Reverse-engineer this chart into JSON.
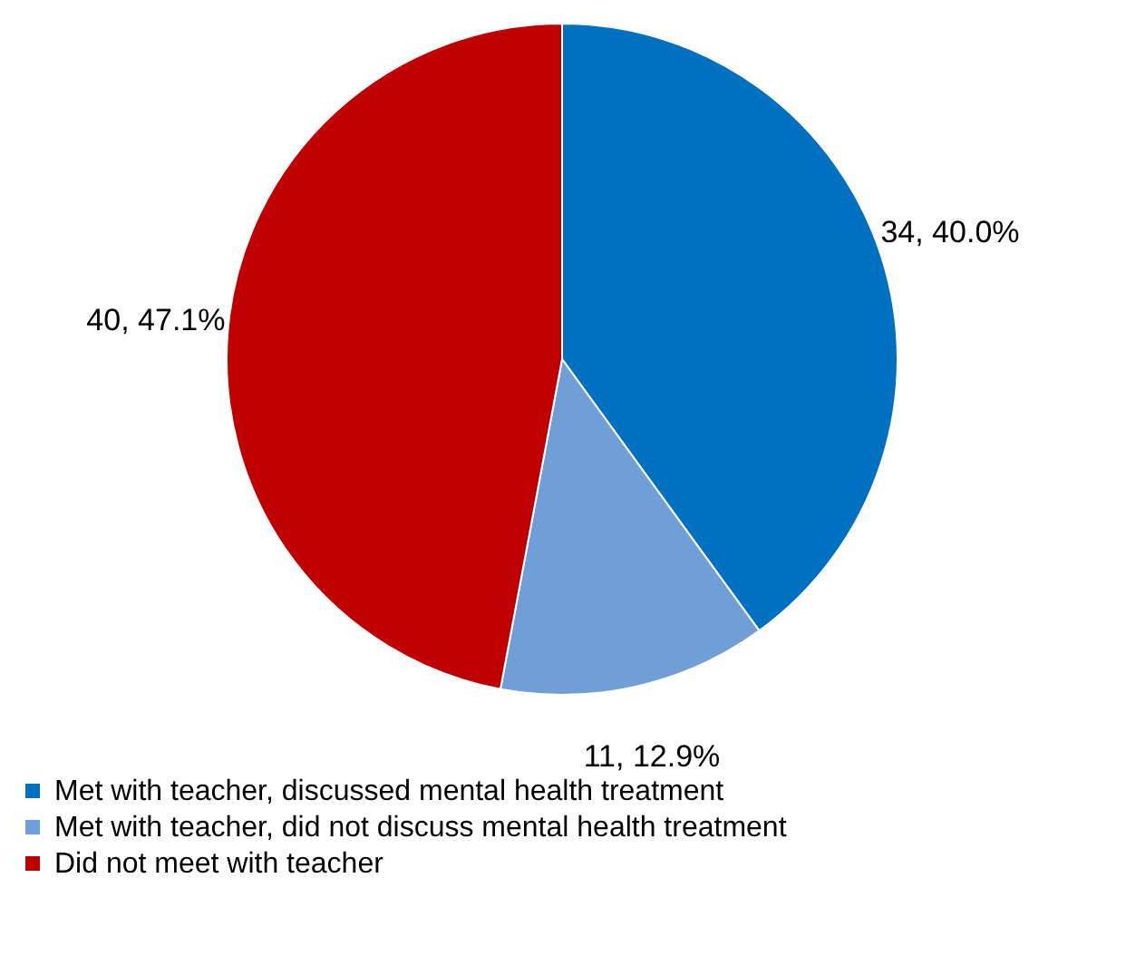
{
  "chart_data": {
    "type": "pie",
    "categories": [
      "Met with teacher, discussed mental health treatment",
      "Met with teacher, did not discuss mental health treatment",
      "Did not meet with teacher"
    ],
    "values": [
      34,
      11,
      40
    ],
    "colors": [
      "#0070c0",
      "#6f9fd6",
      "#c00000"
    ],
    "value_labels": [
      "34, 40.0%",
      "11, 12.9%",
      "40, 47.1%"
    ],
    "legend": "bottom"
  }
}
